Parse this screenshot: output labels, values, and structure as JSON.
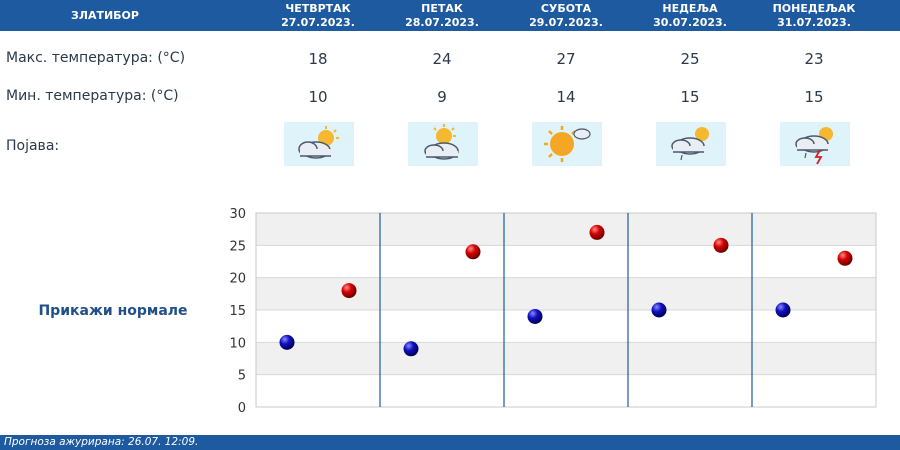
{
  "header": {
    "station": "ЗЛАТИБОР",
    "days": [
      {
        "name": "ЧЕТВРТАК",
        "date": "27.07.2023."
      },
      {
        "name": "ПЕТАК",
        "date": "28.07.2023."
      },
      {
        "name": "СУБОТА",
        "date": "29.07.2023."
      },
      {
        "name": "НЕДЕЉА",
        "date": "30.07.2023."
      },
      {
        "name": "ПОНЕДЕЉАК",
        "date": "31.07.2023."
      }
    ]
  },
  "rows": {
    "max_label": "Макс. температура: (°C)",
    "min_label": "Мин. температура: (°C)",
    "phenomenon_label": "Појава:",
    "max_values": [
      "18",
      "24",
      "27",
      "25",
      "23"
    ],
    "min_values": [
      "10",
      "9",
      "14",
      "15",
      "15"
    ],
    "icons": [
      "partly-cloudy-icon",
      "partly-cloudy-icon",
      "sun-cloud-icon",
      "cloud-rain-icon",
      "thunderstorm-icon"
    ]
  },
  "normals_link": "Прикажи нормале",
  "footer": {
    "text": "Прогноза ажурирана:  26.07.  12:09."
  },
  "colors": {
    "header_bg": "#1e5aa0",
    "max_point": "#cc0000",
    "min_point": "#0000aa"
  },
  "chart_data": {
    "type": "scatter",
    "title": "",
    "xlabel": "",
    "ylabel": "",
    "categories": [
      "",
      "",
      "",
      "",
      ""
    ],
    "ylim": [
      0,
      30
    ],
    "yticks": [
      "0",
      "5",
      "10",
      "15",
      "20",
      "25",
      "30"
    ],
    "grid": true,
    "series": [
      {
        "values": [
          10,
          9,
          14,
          15,
          15
        ],
        "color": "#0000aa"
      },
      {
        "values": [
          18,
          24,
          27,
          25,
          23
        ],
        "color": "#cc0000"
      }
    ]
  }
}
